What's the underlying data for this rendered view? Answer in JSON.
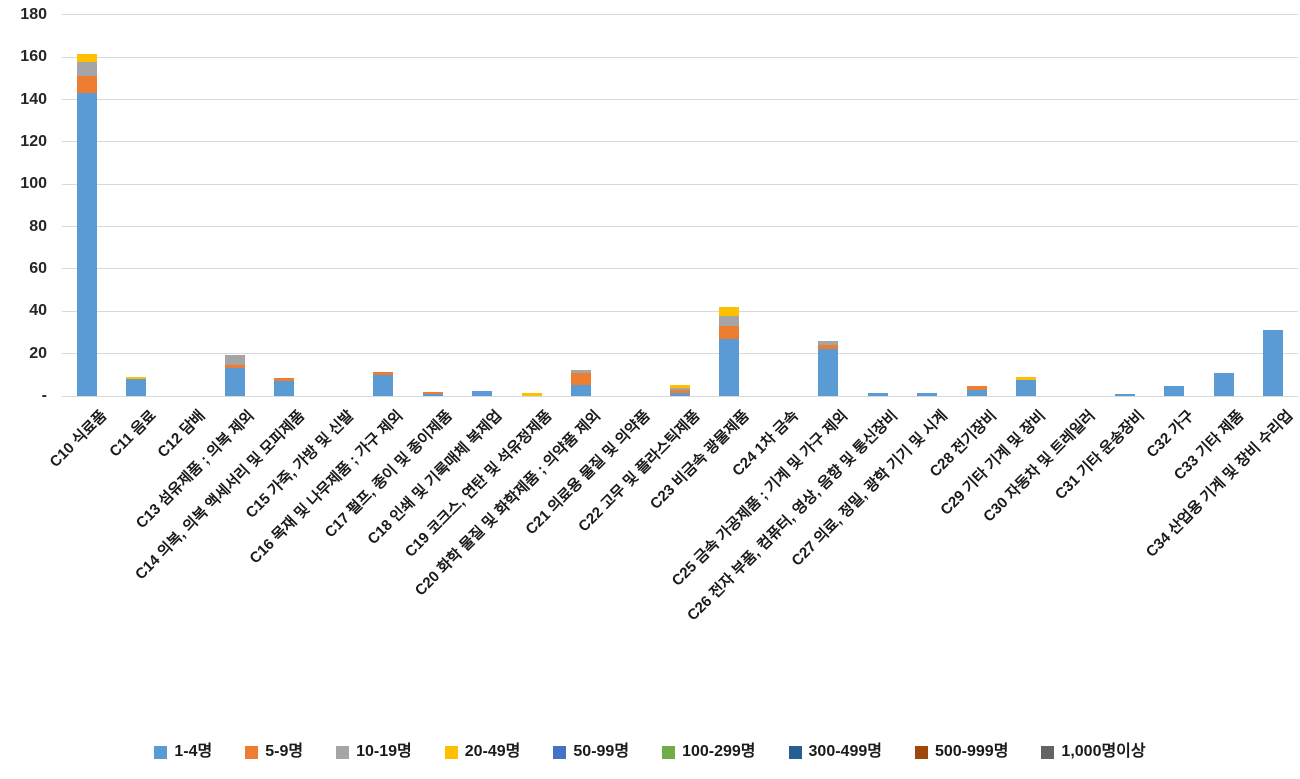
{
  "chart_data": {
    "type": "bar",
    "stacked": true,
    "title": "",
    "xlabel": "",
    "ylabel": "",
    "ylim": [
      0,
      180
    ],
    "grid": "horizontal",
    "legend_position": "bottom",
    "yticks": [
      {
        "label": "-",
        "value": 0
      },
      {
        "label": "20",
        "value": 20
      },
      {
        "label": "40",
        "value": 40
      },
      {
        "label": "60",
        "value": 60
      },
      {
        "label": "80",
        "value": 80
      },
      {
        "label": "100",
        "value": 100
      },
      {
        "label": "120",
        "value": 120
      },
      {
        "label": "140",
        "value": 140
      },
      {
        "label": "160",
        "value": 160
      },
      {
        "label": "180",
        "value": 180
      }
    ],
    "categories": [
      "C10 식료품",
      "C11 음료",
      "C12 담배",
      "C13 섬유제품 ; 의복 제외",
      "C14 의복, 의복 액세서리 및 모피제품",
      "C15 가죽, 가방 및 신발",
      "C16 목재 및 나무제품 ; 가구 제외",
      "C17 펄프, 종이 및 종이제품",
      "C18 인쇄 및 기록매체 복제업",
      "C19 코크스, 연탄 및 석유정제품",
      "C20 화학 물질 및 화학제품 ; 의약품 제외",
      "C21 의료용 물질 및 의약품",
      "C22 고무 및 플라스틱제품",
      "C23 비금속 광물제품",
      "C24 1차 금속",
      "C25 금속 가공제품 ; 기계 및 가구 제외",
      "C26 전자 부품, 컴퓨터, 영상, 음향 및 통신장비",
      "C27 의료, 정밀, 광학 기기 및 시계",
      "C28 전기장비",
      "C29 기타 기계 및 장비",
      "C30 자동차 및 트레일러",
      "C31 기타 운송장비",
      "C32 가구",
      "C33 기타 제품",
      "C34 산업용 기계 및 장비 수리업"
    ],
    "series": [
      {
        "name": "1-4명",
        "color": "#5B9BD5",
        "values": [
          143,
          8,
          0,
          13,
          7,
          0,
          10,
          1,
          2.5,
          0,
          5,
          0,
          1.5,
          27,
          0,
          22,
          1.5,
          1.5,
          3,
          7.5,
          0,
          1,
          4.5,
          11,
          31
        ]
      },
      {
        "name": "5-9명",
        "color": "#ED7D31",
        "values": [
          8,
          0,
          0,
          1.5,
          1.5,
          0,
          1.5,
          1,
          0,
          0,
          6,
          0,
          1.5,
          6,
          0,
          2,
          0,
          0,
          1.5,
          0,
          0,
          0,
          0,
          0,
          0
        ]
      },
      {
        "name": "10-19명",
        "color": "#A5A5A5",
        "values": [
          7,
          0,
          0,
          5,
          0,
          0,
          0,
          0,
          0,
          0,
          1.5,
          0,
          1,
          5,
          0,
          2,
          0,
          0,
          0,
          0,
          0,
          0,
          0,
          0,
          0
        ]
      },
      {
        "name": "20-49명",
        "color": "#FFC000",
        "values": [
          3.5,
          1,
          0,
          0,
          0,
          0,
          0,
          0,
          0,
          1.5,
          0,
          0,
          1,
          4,
          0,
          0,
          0,
          0,
          0,
          1.5,
          0,
          0,
          0,
          0,
          0
        ]
      },
      {
        "name": "50-99명",
        "color": "#4472C4",
        "values": [
          0,
          0,
          0,
          0,
          0,
          0,
          0,
          0,
          0,
          0,
          0,
          0,
          0,
          0,
          0,
          0,
          0,
          0,
          0,
          0,
          0,
          0,
          0,
          0,
          0
        ]
      },
      {
        "name": "100-299명",
        "color": "#70AD47",
        "values": [
          0,
          0,
          0,
          0,
          0,
          0,
          0,
          0,
          0,
          0,
          0,
          0,
          0,
          0,
          0,
          0,
          0,
          0,
          0,
          0,
          0,
          0,
          0,
          0,
          0
        ]
      },
      {
        "name": "300-499명",
        "color": "#255E91",
        "values": [
          0,
          0,
          0,
          0,
          0,
          0,
          0,
          0,
          0,
          0,
          0,
          0,
          0,
          0,
          0,
          0,
          0,
          0,
          0,
          0,
          0,
          0,
          0,
          0,
          0
        ]
      },
      {
        "name": "500-999명",
        "color": "#9E480E",
        "values": [
          0,
          0,
          0,
          0,
          0,
          0,
          0,
          0,
          0,
          0,
          0,
          0,
          0,
          0,
          0,
          0,
          0,
          0,
          0,
          0,
          0,
          0,
          0,
          0,
          0
        ]
      },
      {
        "name": "1,000명이상",
        "color": "#636363",
        "values": [
          0,
          0,
          0,
          0,
          0,
          0,
          0,
          0,
          0,
          0,
          0,
          0,
          0,
          0,
          0,
          0,
          0,
          0,
          0,
          0,
          0,
          0,
          0,
          0,
          0
        ]
      }
    ]
  },
  "colors": {
    "background": "#FFFFFF",
    "gridline": "#D9D9D9",
    "axis_text": "#262626",
    "label_text": "#1A1A1A"
  }
}
